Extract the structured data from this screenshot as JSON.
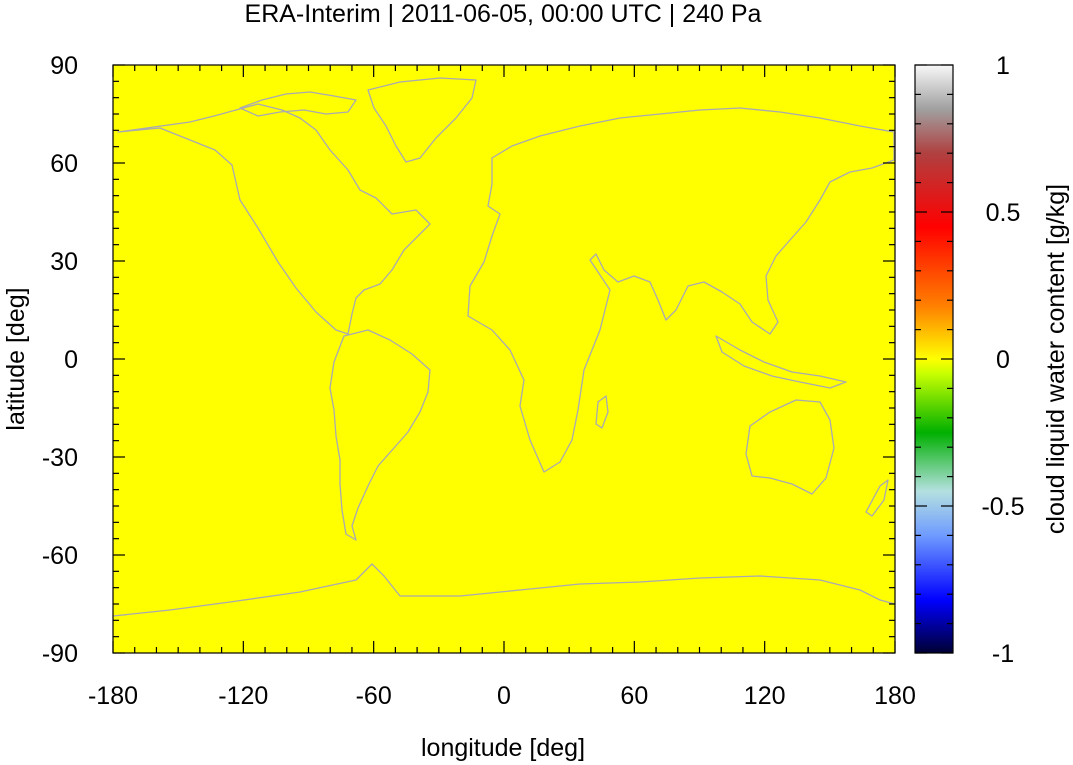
{
  "chart_data": {
    "type": "heatmap",
    "title": "ERA-Interim | 2011-06-05, 00:00 UTC | 240 Pa",
    "xlabel": "longitude [deg]",
    "ylabel": "latitude [deg]",
    "xlim": [
      -180,
      180
    ],
    "ylim": [
      -90,
      90
    ],
    "xticks": [
      -180,
      -120,
      -60,
      0,
      60,
      120,
      180
    ],
    "yticks": [
      -90,
      -60,
      -30,
      0,
      30,
      60,
      90
    ],
    "field_value": 0,
    "field_color": "#ffff00",
    "coastline_color": "#a9a9b3",
    "colorbar": {
      "label": "cloud liquid water content [g/kg]",
      "range": [
        -1,
        1
      ],
      "ticks": [
        -1,
        -0.5,
        0,
        0.5,
        1
      ],
      "colors": [
        {
          "value": -1,
          "color": "#000033"
        },
        {
          "value": -0.82,
          "color": "#0000ff"
        },
        {
          "value": -0.6,
          "color": "#6f9bff"
        },
        {
          "value": -0.45,
          "color": "#b4e0e0"
        },
        {
          "value": -0.25,
          "color": "#00b000"
        },
        {
          "value": -0.05,
          "color": "#c8ff00"
        },
        {
          "value": 0,
          "color": "#ffff00"
        },
        {
          "value": 0.18,
          "color": "#ff8000"
        },
        {
          "value": 0.45,
          "color": "#ff0000"
        },
        {
          "value": 0.7,
          "color": "#b04040"
        },
        {
          "value": 0.85,
          "color": "#a0a0a0"
        },
        {
          "value": 1,
          "color": "#f8f8f8"
        }
      ]
    }
  }
}
